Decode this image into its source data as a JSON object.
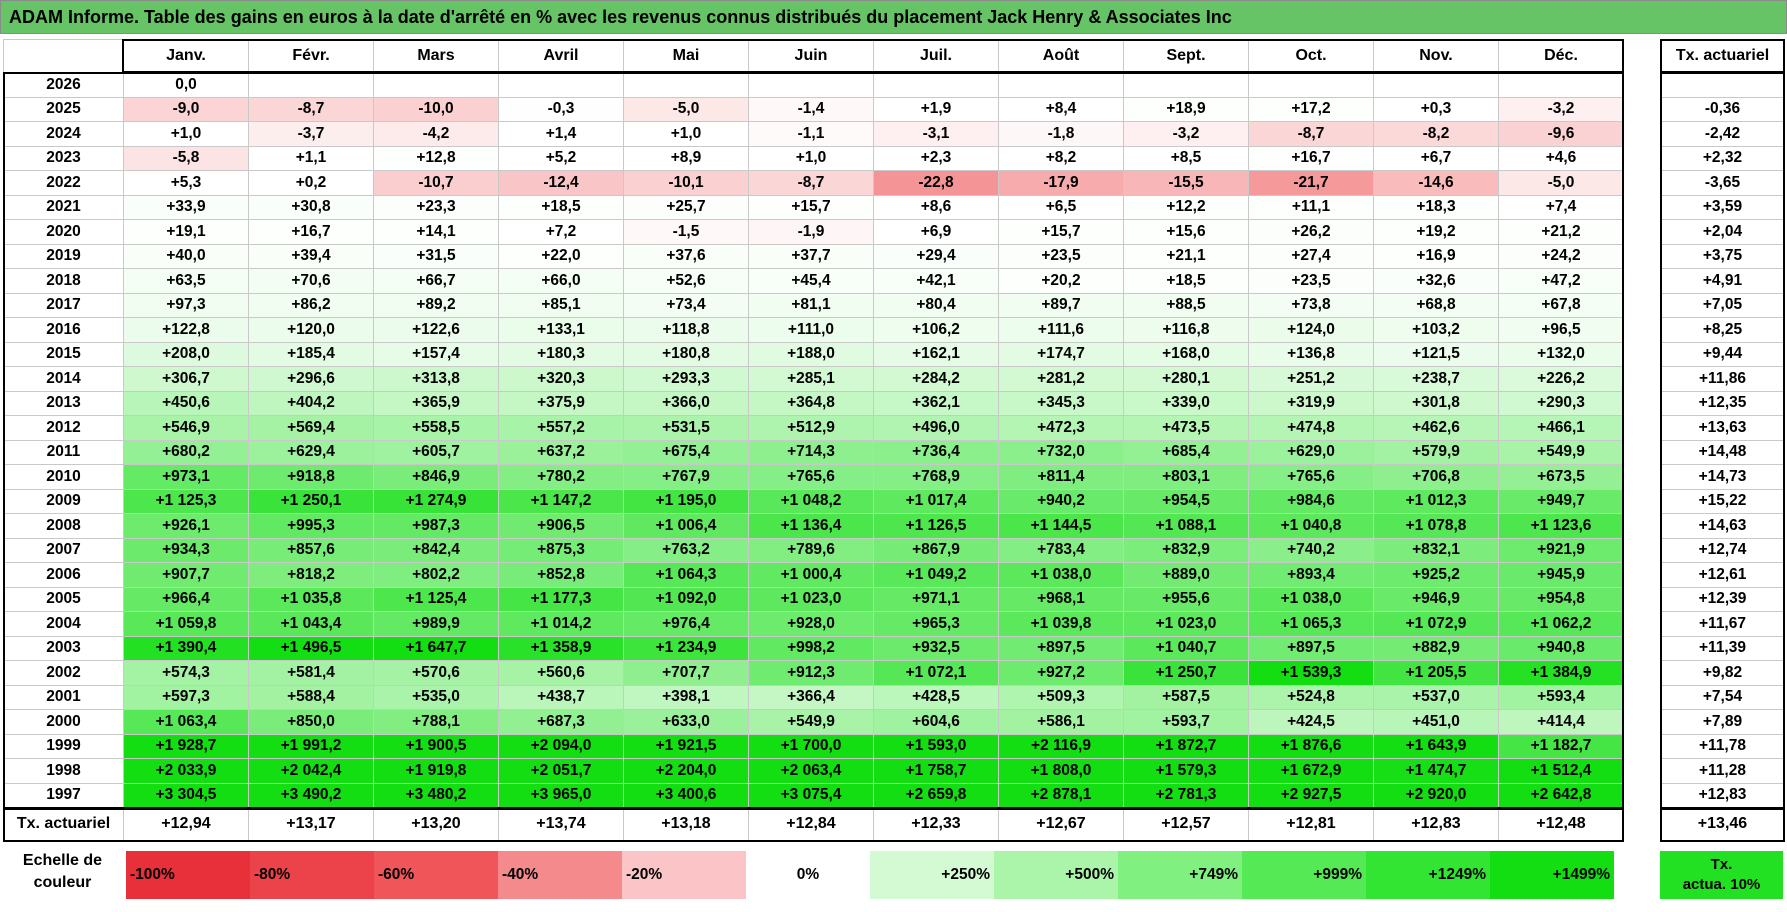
{
  "title": "ADAM Informe. Table des gains en euros à la date d'arrêté en % avec les revenus connus distribués du placement Jack Henry & Associates Inc",
  "chart_data": {
    "type": "table",
    "columns": [
      "Janv.",
      "Févr.",
      "Mars",
      "Avril",
      "Mai",
      "Juin",
      "Juil.",
      "Août",
      "Sept.",
      "Oct.",
      "Nov.",
      "Déc."
    ],
    "actuarial_header": "Tx. actuariel",
    "rows": [
      {
        "year": "2026",
        "values": [
          "0,0",
          "",
          "",
          "",
          "",
          "",
          "",
          "",
          "",
          "",
          "",
          ""
        ],
        "actuarial": ""
      },
      {
        "year": "2025",
        "values": [
          "-9,0",
          "-8,7",
          "-10,0",
          "-0,3",
          "-5,0",
          "-1,4",
          "+1,9",
          "+8,4",
          "+18,9",
          "+17,2",
          "+0,3",
          "-3,2"
        ],
        "actuarial": "-0,36"
      },
      {
        "year": "2024",
        "values": [
          "+1,0",
          "-3,7",
          "-4,2",
          "+1,4",
          "+1,0",
          "-1,1",
          "-3,1",
          "-1,8",
          "-3,2",
          "-8,7",
          "-8,2",
          "-9,6"
        ],
        "actuarial": "-2,42"
      },
      {
        "year": "2023",
        "values": [
          "-5,8",
          "+1,1",
          "+12,8",
          "+5,2",
          "+8,9",
          "+1,0",
          "+2,3",
          "+8,2",
          "+8,5",
          "+16,7",
          "+6,7",
          "+4,6"
        ],
        "actuarial": "+2,32"
      },
      {
        "year": "2022",
        "values": [
          "+5,3",
          "+0,2",
          "-10,7",
          "-12,4",
          "-10,1",
          "-8,7",
          "-22,8",
          "-17,9",
          "-15,5",
          "-21,7",
          "-14,6",
          "-5,0"
        ],
        "actuarial": "-3,65"
      },
      {
        "year": "2021",
        "values": [
          "+33,9",
          "+30,8",
          "+23,3",
          "+18,5",
          "+25,7",
          "+15,7",
          "+8,6",
          "+6,5",
          "+12,2",
          "+11,1",
          "+18,3",
          "+7,4"
        ],
        "actuarial": "+3,59"
      },
      {
        "year": "2020",
        "values": [
          "+19,1",
          "+16,7",
          "+14,1",
          "+7,2",
          "-1,5",
          "-1,9",
          "+6,9",
          "+15,7",
          "+15,6",
          "+26,2",
          "+19,2",
          "+21,2"
        ],
        "actuarial": "+2,04"
      },
      {
        "year": "2019",
        "values": [
          "+40,0",
          "+39,4",
          "+31,5",
          "+22,0",
          "+37,6",
          "+37,7",
          "+29,4",
          "+23,5",
          "+21,1",
          "+27,4",
          "+16,9",
          "+24,2"
        ],
        "actuarial": "+3,75"
      },
      {
        "year": "2018",
        "values": [
          "+63,5",
          "+70,6",
          "+66,7",
          "+66,0",
          "+52,6",
          "+45,4",
          "+42,1",
          "+20,2",
          "+18,5",
          "+23,5",
          "+32,6",
          "+47,2"
        ],
        "actuarial": "+4,91"
      },
      {
        "year": "2017",
        "values": [
          "+97,3",
          "+86,2",
          "+89,2",
          "+85,1",
          "+73,4",
          "+81,1",
          "+80,4",
          "+89,7",
          "+88,5",
          "+73,8",
          "+68,8",
          "+67,8"
        ],
        "actuarial": "+7,05"
      },
      {
        "year": "2016",
        "values": [
          "+122,8",
          "+120,0",
          "+122,6",
          "+133,1",
          "+118,8",
          "+111,0",
          "+106,2",
          "+111,6",
          "+116,8",
          "+124,0",
          "+103,2",
          "+96,5"
        ],
        "actuarial": "+8,25"
      },
      {
        "year": "2015",
        "values": [
          "+208,0",
          "+185,4",
          "+157,4",
          "+180,3",
          "+180,8",
          "+188,0",
          "+162,1",
          "+174,7",
          "+168,0",
          "+136,8",
          "+121,5",
          "+132,0"
        ],
        "actuarial": "+9,44"
      },
      {
        "year": "2014",
        "values": [
          "+306,7",
          "+296,6",
          "+313,8",
          "+320,3",
          "+293,3",
          "+285,1",
          "+284,2",
          "+281,2",
          "+280,1",
          "+251,2",
          "+238,7",
          "+226,2"
        ],
        "actuarial": "+11,86"
      },
      {
        "year": "2013",
        "values": [
          "+450,6",
          "+404,2",
          "+365,9",
          "+375,9",
          "+366,0",
          "+364,8",
          "+362,1",
          "+345,3",
          "+339,0",
          "+319,9",
          "+301,8",
          "+290,3"
        ],
        "actuarial": "+12,35"
      },
      {
        "year": "2012",
        "values": [
          "+546,9",
          "+569,4",
          "+558,5",
          "+557,2",
          "+531,5",
          "+512,9",
          "+496,0",
          "+472,3",
          "+473,5",
          "+474,8",
          "+462,6",
          "+466,1"
        ],
        "actuarial": "+13,63"
      },
      {
        "year": "2011",
        "values": [
          "+680,2",
          "+629,4",
          "+605,7",
          "+637,2",
          "+675,4",
          "+714,3",
          "+736,4",
          "+732,0",
          "+685,4",
          "+629,0",
          "+579,9",
          "+549,9"
        ],
        "actuarial": "+14,48"
      },
      {
        "year": "2010",
        "values": [
          "+973,1",
          "+918,8",
          "+846,9",
          "+780,2",
          "+767,9",
          "+765,6",
          "+768,9",
          "+811,4",
          "+803,1",
          "+765,6",
          "+706,8",
          "+673,5"
        ],
        "actuarial": "+14,73"
      },
      {
        "year": "2009",
        "values": [
          "+1 125,3",
          "+1 250,1",
          "+1 274,9",
          "+1 147,2",
          "+1 195,0",
          "+1 048,2",
          "+1 017,4",
          "+940,2",
          "+954,5",
          "+984,6",
          "+1 012,3",
          "+949,7"
        ],
        "actuarial": "+15,22"
      },
      {
        "year": "2008",
        "values": [
          "+926,1",
          "+995,3",
          "+987,3",
          "+906,5",
          "+1 006,4",
          "+1 136,4",
          "+1 126,5",
          "+1 144,5",
          "+1 088,1",
          "+1 040,8",
          "+1 078,8",
          "+1 123,6"
        ],
        "actuarial": "+14,63"
      },
      {
        "year": "2007",
        "values": [
          "+934,3",
          "+857,6",
          "+842,4",
          "+875,3",
          "+763,2",
          "+789,6",
          "+867,9",
          "+783,4",
          "+832,9",
          "+740,2",
          "+832,1",
          "+921,9"
        ],
        "actuarial": "+12,74"
      },
      {
        "year": "2006",
        "values": [
          "+907,7",
          "+818,2",
          "+802,2",
          "+852,8",
          "+1 064,3",
          "+1 000,4",
          "+1 049,2",
          "+1 038,0",
          "+889,0",
          "+893,4",
          "+925,2",
          "+945,9"
        ],
        "actuarial": "+12,61"
      },
      {
        "year": "2005",
        "values": [
          "+966,4",
          "+1 035,8",
          "+1 125,4",
          "+1 177,3",
          "+1 092,0",
          "+1 023,0",
          "+971,1",
          "+968,1",
          "+955,6",
          "+1 038,0",
          "+946,9",
          "+954,8"
        ],
        "actuarial": "+12,39"
      },
      {
        "year": "2004",
        "values": [
          "+1 059,8",
          "+1 043,4",
          "+989,9",
          "+1 014,2",
          "+976,4",
          "+928,0",
          "+965,3",
          "+1 039,8",
          "+1 023,0",
          "+1 065,3",
          "+1 072,9",
          "+1 062,2"
        ],
        "actuarial": "+11,67"
      },
      {
        "year": "2003",
        "values": [
          "+1 390,4",
          "+1 496,5",
          "+1 647,7",
          "+1 358,9",
          "+1 234,9",
          "+998,2",
          "+932,5",
          "+897,5",
          "+1 040,7",
          "+897,5",
          "+882,9",
          "+940,8"
        ],
        "actuarial": "+11,39"
      },
      {
        "year": "2002",
        "values": [
          "+574,3",
          "+581,4",
          "+570,6",
          "+560,6",
          "+707,7",
          "+912,3",
          "+1 072,1",
          "+927,2",
          "+1 250,7",
          "+1 539,3",
          "+1 205,5",
          "+1 384,9"
        ],
        "actuarial": "+9,82"
      },
      {
        "year": "2001",
        "values": [
          "+597,3",
          "+588,4",
          "+535,0",
          "+438,7",
          "+398,1",
          "+366,4",
          "+428,5",
          "+509,3",
          "+587,5",
          "+524,8",
          "+537,0",
          "+593,4"
        ],
        "actuarial": "+7,54"
      },
      {
        "year": "2000",
        "values": [
          "+1 063,4",
          "+850,0",
          "+788,1",
          "+687,3",
          "+633,0",
          "+549,9",
          "+604,6",
          "+586,1",
          "+593,7",
          "+424,5",
          "+451,0",
          "+414,4"
        ],
        "actuarial": "+7,89"
      },
      {
        "year": "1999",
        "values": [
          "+1 928,7",
          "+1 991,2",
          "+1 900,5",
          "+2 094,0",
          "+1 921,5",
          "+1 700,0",
          "+1 593,0",
          "+2 116,9",
          "+1 872,7",
          "+1 876,6",
          "+1 643,9",
          "+1 182,7"
        ],
        "actuarial": "+11,78"
      },
      {
        "year": "1998",
        "values": [
          "+2 033,9",
          "+2 042,4",
          "+1 919,8",
          "+2 051,7",
          "+2 204,0",
          "+2 063,4",
          "+1 758,7",
          "+1 808,0",
          "+1 579,3",
          "+1 672,9",
          "+1 474,7",
          "+1 512,4"
        ],
        "actuarial": "+11,28"
      },
      {
        "year": "1997",
        "values": [
          "+3 304,5",
          "+3 490,2",
          "+3 480,2",
          "+3 965,0",
          "+3 400,6",
          "+3 075,4",
          "+2 659,8",
          "+2 878,1",
          "+2 781,3",
          "+2 927,5",
          "+2 920,0",
          "+2 642,8"
        ],
        "actuarial": "+12,83"
      }
    ],
    "footer": {
      "label": "Tx. actuariel",
      "values": [
        "+12,94",
        "+13,17",
        "+13,20",
        "+13,74",
        "+13,18",
        "+12,84",
        "+12,33",
        "+12,67",
        "+12,57",
        "+12,81",
        "+12,83",
        "+12,48"
      ],
      "actuarial": "+13,46"
    },
    "color_scale": {
      "label": "Echelle de couleur",
      "stops": [
        {
          "label": "-100%",
          "color": "#e8303a",
          "align": "left"
        },
        {
          "label": "-80%",
          "color": "#ec434a",
          "align": "left"
        },
        {
          "label": "-60%",
          "color": "#f05559",
          "align": "left"
        },
        {
          "label": "-40%",
          "color": "#f48a8c",
          "align": "left"
        },
        {
          "label": "-20%",
          "color": "#fbc4c6",
          "align": "left"
        },
        {
          "label": "0%",
          "color": "#ffffff",
          "align": "center"
        },
        {
          "label": "+250%",
          "color": "#d4fad4",
          "align": "right"
        },
        {
          "label": "+500%",
          "color": "#aaf5aa",
          "align": "right"
        },
        {
          "label": "+749%",
          "color": "#80f080",
          "align": "right"
        },
        {
          "label": "+999%",
          "color": "#55ea55",
          "align": "right"
        },
        {
          "label": "+1249%",
          "color": "#33e533",
          "align": "right"
        },
        {
          "label": "+1499%",
          "color": "#12de12",
          "align": "right"
        }
      ],
      "actuarial_swatch": {
        "label_line1": "Tx.",
        "label_line2": "actua. 10%",
        "color": "#22e022"
      }
    },
    "colors": {
      "title_bar": "#66c366",
      "negative_max": "#f48a8c",
      "positive_max": "#12de12"
    }
  }
}
